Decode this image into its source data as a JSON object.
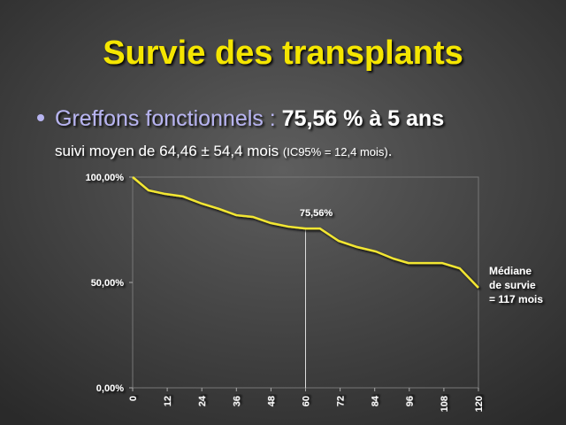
{
  "chart_data": {
    "type": "line",
    "title": "Survie des transplants",
    "bullet": {
      "label": "Greffons fonctionnels :",
      "highlight": "75,56 % à 5 ans"
    },
    "subtitle": {
      "main": "suivi moyen de 64,46 ± 54,4 mois",
      "note": "(IC95% = 12,4 mois)",
      "end": "."
    },
    "series": [
      {
        "name": "Survie",
        "color": "#f2e632",
        "x": [
          0,
          5.5,
          11.3,
          17.5,
          24,
          30,
          36,
          41.7,
          47.9,
          54,
          60,
          65,
          71.5,
          77.9,
          84.4,
          90.5,
          95.7,
          107.4,
          113.5,
          120
        ],
        "values": [
          100,
          93.7,
          92,
          90.8,
          87.4,
          84.9,
          81.9,
          81.1,
          78.2,
          76.5,
          75.56,
          75.6,
          69.7,
          66.8,
          64.7,
          61.3,
          59.2,
          59.2,
          56.7,
          47.5
        ]
      }
    ],
    "xlim": [
      0,
      120
    ],
    "xticks": [
      0,
      12,
      24,
      36,
      48,
      60,
      72,
      84,
      96,
      108,
      120
    ],
    "ylim": [
      0,
      100
    ],
    "yticks": [
      {
        "value": 0,
        "label": "0,00%"
      },
      {
        "value": 50,
        "label": "50,00%"
      },
      {
        "value": 100,
        "label": "100,00%"
      }
    ],
    "annotations": [
      {
        "text": "75,56%",
        "x": 60,
        "y": 75.56
      },
      {
        "lines": [
          "Médiane",
          "de survie",
          "= 117 mois"
        ]
      }
    ]
  }
}
